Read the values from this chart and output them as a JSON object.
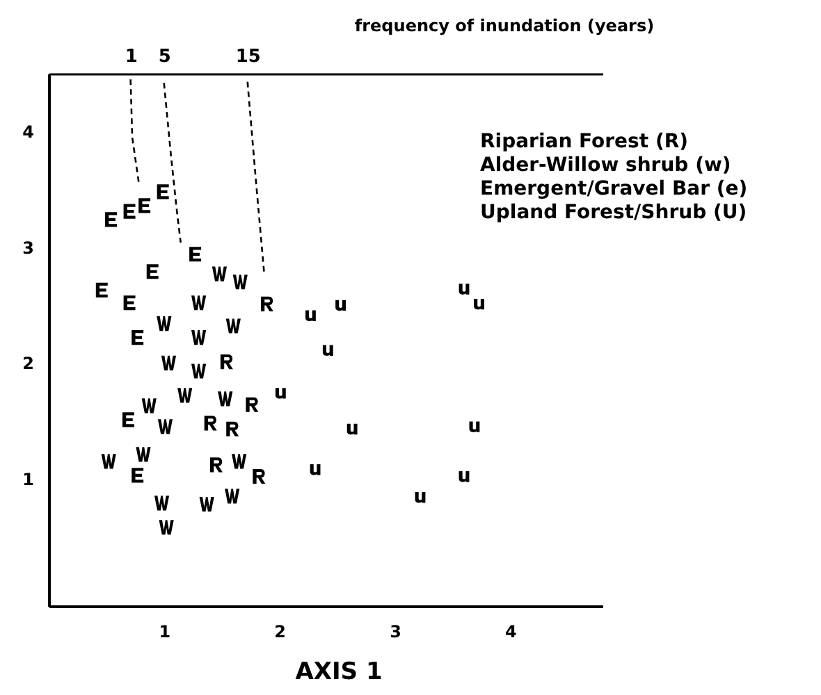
{
  "chart_data": {
    "type": "scatter",
    "xlabel": "AXIS 1",
    "x2label": "frequency of inundation (years)",
    "xlim": [
      0,
      4.8
    ],
    "xticks": [
      1,
      2,
      3,
      4
    ],
    "ylim": [
      -0.1,
      4.5
    ],
    "yticks": [
      1,
      2,
      3,
      4
    ],
    "x2lim": [
      -8.8,
      57.5
    ],
    "x2ticks": [
      1,
      5,
      15
    ],
    "grid": false,
    "annotations": [
      "Riparian Forest (R)",
      "Alder-Willow shrub (w)",
      "Emergent/Gravel Bar (e)",
      "Upland Forest/Shrub (U)"
    ],
    "series": [
      {
        "color": "#000000",
        "x": [
          1.89,
          1.54,
          1.76,
          1.4,
          1.59,
          1.45,
          1.82
        ],
        "values": [
          2.51,
          2.01,
          1.64,
          1.48,
          1.43,
          1.12,
          1.02
        ]
      },
      {
        "color": "#000000",
        "x": [
          1.48,
          1.66,
          1.3,
          1.0,
          1.3,
          1.6,
          1.04,
          1.3,
          1.18,
          0.87,
          1.53,
          1.01,
          0.52,
          0.82,
          1.65,
          0.98,
          1.37,
          1.59,
          1.02
        ],
        "values": [
          2.77,
          2.7,
          2.52,
          2.34,
          2.22,
          2.32,
          2.0,
          1.93,
          1.72,
          1.63,
          1.69,
          1.45,
          1.15,
          1.21,
          1.15,
          0.79,
          0.78,
          0.85,
          0.58
        ]
      },
      {
        "color": "#000000",
        "x": [
          0.54,
          0.7,
          0.83,
          0.99,
          1.27,
          0.9,
          0.46,
          0.7,
          0.77,
          0.69,
          0.77
        ],
        "values": [
          3.24,
          3.31,
          3.36,
          3.48,
          2.94,
          2.79,
          2.63,
          2.52,
          2.22,
          1.51,
          1.03
        ]
      },
      {
        "color": "#000000",
        "x": [
          2.27,
          2.53,
          2.42,
          2.01,
          2.63,
          2.31,
          3.6,
          3.73,
          3.69,
          3.6,
          3.22
        ],
        "values": [
          2.41,
          2.5,
          2.11,
          1.74,
          1.43,
          1.08,
          2.64,
          2.51,
          1.45,
          1.02,
          0.84
        ]
      },
      {
        "type": "line",
        "axis": "x2",
        "line_style": "dashed",
        "marker": "none",
        "color": "#000000",
        "x": [
          1,
          1.2,
          2.0
        ],
        "values": [
          4.45,
          3.95,
          3.55
        ]
      },
      {
        "type": "line",
        "axis": "x2",
        "line_style": "dashed",
        "marker": "none",
        "color": "#000000",
        "x": [
          5,
          5.8,
          6.5,
          7.0
        ],
        "values": [
          4.42,
          3.82,
          3.34,
          3.04
        ]
      },
      {
        "type": "line",
        "axis": "x2",
        "line_style": "dashed",
        "marker": "none",
        "color": "#000000",
        "x": [
          15,
          16,
          17
        ],
        "values": [
          4.43,
          3.58,
          2.77
        ]
      }
    ]
  }
}
